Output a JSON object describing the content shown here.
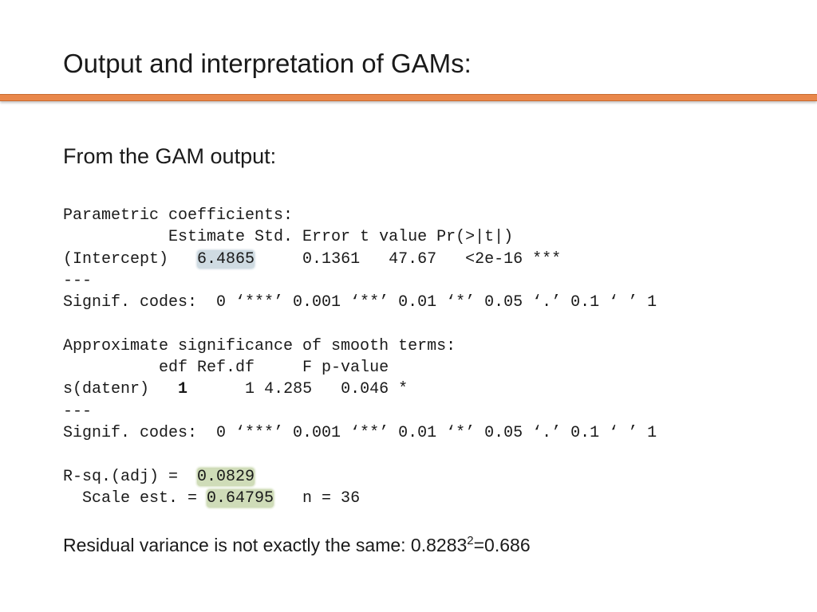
{
  "slide": {
    "title": "Output and interpretation of GAMs:",
    "subtitle": "From the GAM output:"
  },
  "output": {
    "parametric_header": "Parametric coefficients:",
    "coef_header": "           Estimate Std. Error t value Pr(>|t|)",
    "intercept_label": "(Intercept)   ",
    "intercept_estimate": "6.4865",
    "intercept_rest": "     0.1361   47.67   <2e-16 ***",
    "sep1": "---",
    "signif1": "Signif. codes:  0 ‘***’ 0.001 ‘**’ 0.01 ‘*’ 0.05 ‘.’ 0.1 ‘ ’ 1",
    "smooth_header": "Approximate significance of smooth terms:",
    "smooth_cols": "          edf Ref.df     F p-value",
    "smooth_label": "s(datenr)   ",
    "smooth_edf": "1",
    "smooth_rest": "      1 4.285   0.046 *",
    "sep2": "---",
    "signif2": "Signif. codes:  0 ‘***’ 0.001 ‘**’ 0.01 ‘*’ 0.05 ‘.’ 0.1 ‘ ’ 1",
    "rsq_label": "R-sq.(adj) =  ",
    "rsq_value": "0.0829",
    "scale_label": "  Scale est. = ",
    "scale_value": "0.64795",
    "n_text": "   n = 36"
  },
  "note": {
    "text": "Residual variance is not exactly the same: 0.8283",
    "exponent": "2",
    "result": "=0.686"
  },
  "colors": {
    "accent_rule": "#e9874a",
    "highlight_blue": "#cfdbe2",
    "highlight_green": "#cfdcb8"
  }
}
